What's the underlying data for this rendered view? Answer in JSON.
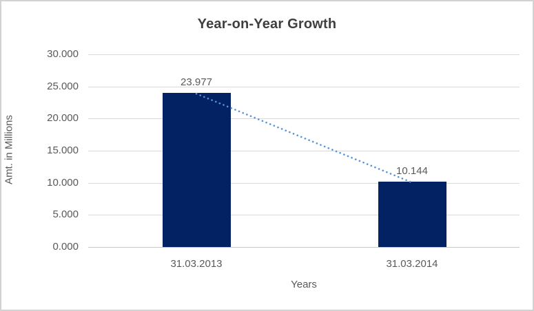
{
  "chart_data": {
    "type": "bar",
    "title": "Year-on-Year Growth",
    "xlabel": "Years",
    "ylabel": "Amt. in Millions",
    "categories": [
      "31.03.2013",
      "31.03.2014"
    ],
    "values": [
      23.977,
      10.144
    ],
    "data_labels": [
      "23.977",
      "10.144"
    ],
    "ylim": [
      0,
      30
    ],
    "ytick_step": 5,
    "yticks": [
      "30.000",
      "25.000",
      "20.000",
      "15.000",
      "10.000",
      "5.000",
      "0.000"
    ],
    "grid": true,
    "legend": false,
    "bar_color": "#032264",
    "trendline": {
      "style": "dotted",
      "color": "#5593d8"
    }
  },
  "frame": {
    "background": "#ffffff",
    "border_color": "#d2d2d2",
    "gridline_color": "#d9d9d9",
    "text_color": "#595959",
    "title_color": "#3f3f3f"
  }
}
